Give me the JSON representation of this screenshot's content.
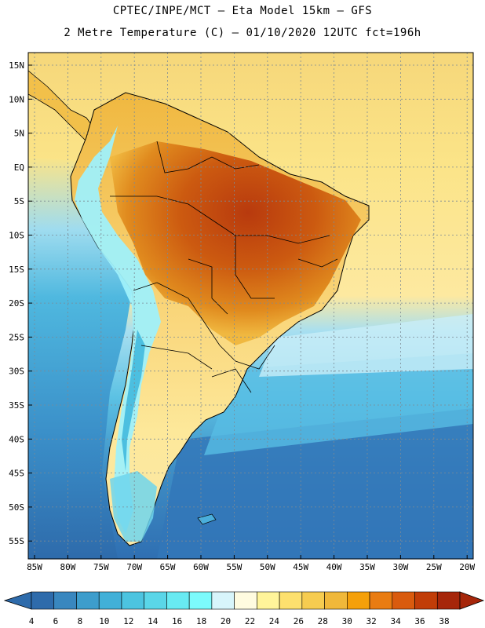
{
  "header": {
    "line1": "CPTEC/INPE/MCT –  Eta Model 15km – GFS",
    "line2": "2 Metre Temperature (C) – 01/10/2020 12UTC fct=196h"
  },
  "axes": {
    "lat_labels": [
      "15N",
      "10N",
      "5N",
      "EQ",
      "5S",
      "10S",
      "15S",
      "20S",
      "25S",
      "30S",
      "35S",
      "40S",
      "45S",
      "50S",
      "55S"
    ],
    "lon_labels": [
      "85W",
      "80W",
      "75W",
      "70W",
      "65W",
      "60W",
      "55W",
      "50W",
      "45W",
      "40W",
      "35W",
      "30W",
      "25W",
      "20W"
    ]
  },
  "colorbar": {
    "ticks": [
      "4",
      "6",
      "8",
      "10",
      "12",
      "14",
      "16",
      "18",
      "20",
      "22",
      "24",
      "26",
      "28",
      "30",
      "32",
      "34",
      "36",
      "38"
    ],
    "colors": [
      "#2e6bab",
      "#3987bf",
      "#3d9dcc",
      "#41b0d8",
      "#4cc4e0",
      "#5ad6e8",
      "#68eaf2",
      "#7cfafc",
      "#d8f5fb",
      "#fffbe0",
      "#fff49a",
      "#fde06e",
      "#f6cc50",
      "#f0b83a",
      "#f5a00a",
      "#e97c12",
      "#d95b0e",
      "#c13d08",
      "#a6260a"
    ]
  },
  "map": {
    "ocean_colors": {
      "north_warm": "#f6d77a",
      "tropical": "#fbe488",
      "mid": "#a8dff0",
      "cool": "#4aaedb",
      "south": "#2f72b5"
    },
    "land_colors": {
      "hot_core": "#b83a0e",
      "hot": "#d0600e",
      "warm": "#e08a1e",
      "mild": "#f0b840",
      "cool_land": "#fde89a",
      "andes": "#9ff0fa",
      "andes_peak": "#4cbfe0"
    }
  }
}
